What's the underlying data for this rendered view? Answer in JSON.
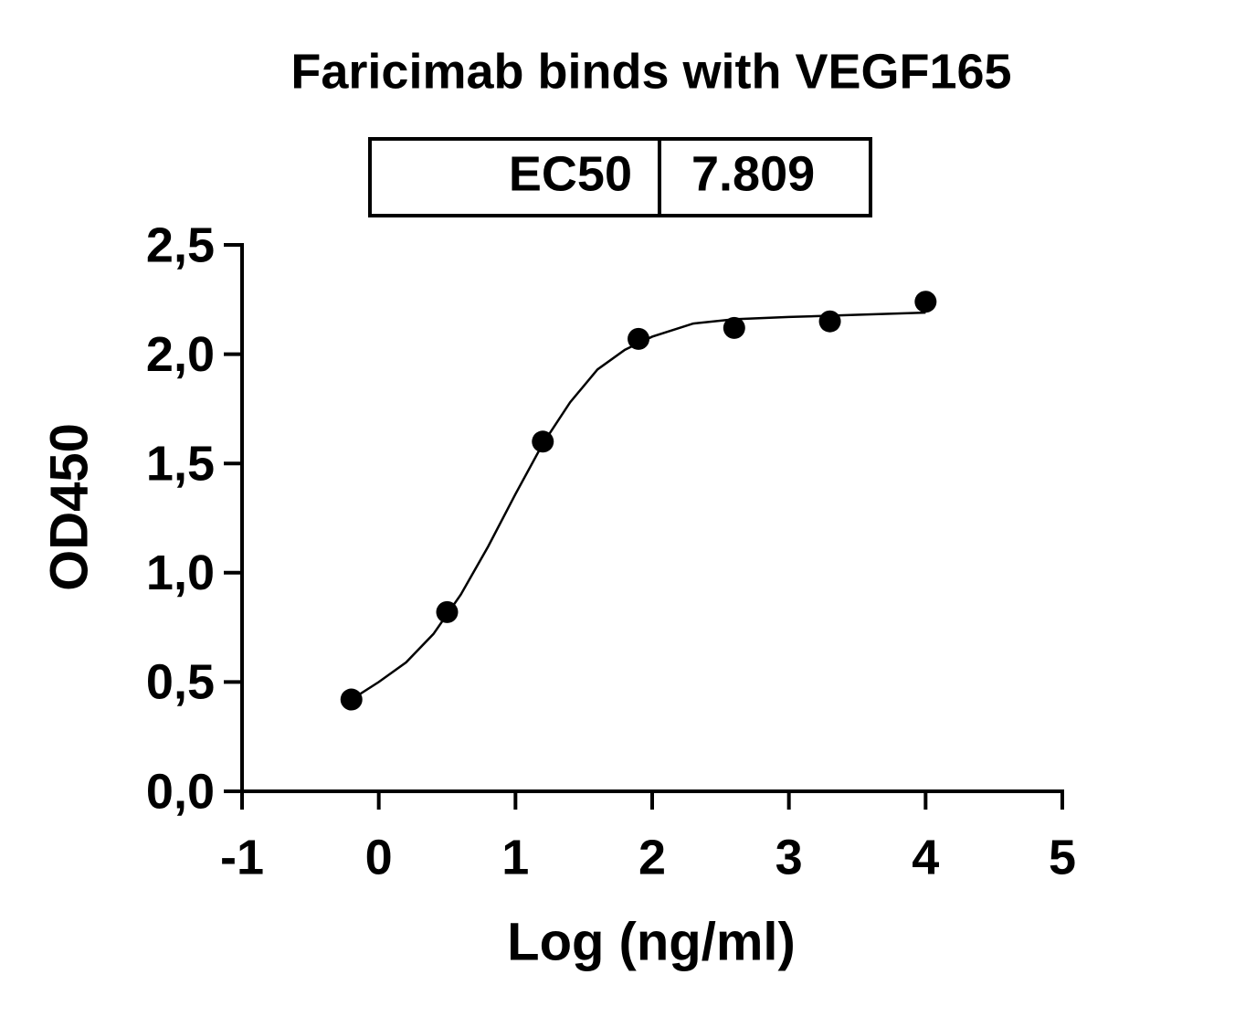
{
  "chart_data": {
    "type": "scatter",
    "title": "Faricimab binds with VEGF165",
    "ec50_table": {
      "label": "EC50",
      "value": 7.809
    },
    "x_label": "Log (ng/ml)",
    "y_label": "OD450",
    "series": [
      {
        "mode": "markers",
        "color": "#000000",
        "x": [
          -0.2,
          0.5,
          1.2,
          1.9,
          2.6,
          3.3,
          4.0
        ],
        "values": [
          0.42,
          0.82,
          1.6,
          2.07,
          2.12,
          2.15,
          2.24
        ]
      },
      {
        "mode": "line",
        "color": "#000000",
        "x": [
          -0.2,
          0,
          0.2,
          0.4,
          0.6,
          0.8,
          1.0,
          1.2,
          1.4,
          1.6,
          1.8,
          2.0,
          2.3,
          2.6,
          3.0,
          3.5,
          4.0
        ],
        "values": [
          0.42,
          0.5,
          0.59,
          0.72,
          0.9,
          1.12,
          1.36,
          1.59,
          1.78,
          1.93,
          2.02,
          2.08,
          2.14,
          2.16,
          2.17,
          2.18,
          2.19
        ]
      }
    ],
    "xlim": [
      -1,
      5
    ],
    "xticks": [
      -1,
      0,
      1,
      2,
      3,
      4,
      5
    ],
    "ylim": [
      0,
      2.5
    ],
    "yticks": [
      {
        "value": 0,
        "label": "0,0"
      },
      {
        "value": 0.5,
        "label": "0,5"
      },
      {
        "value": 1,
        "label": "1,0"
      },
      {
        "value": 1.5,
        "label": "1,5"
      },
      {
        "value": 2,
        "label": "2,0"
      },
      {
        "value": 2.5,
        "label": "2,5"
      }
    ]
  }
}
